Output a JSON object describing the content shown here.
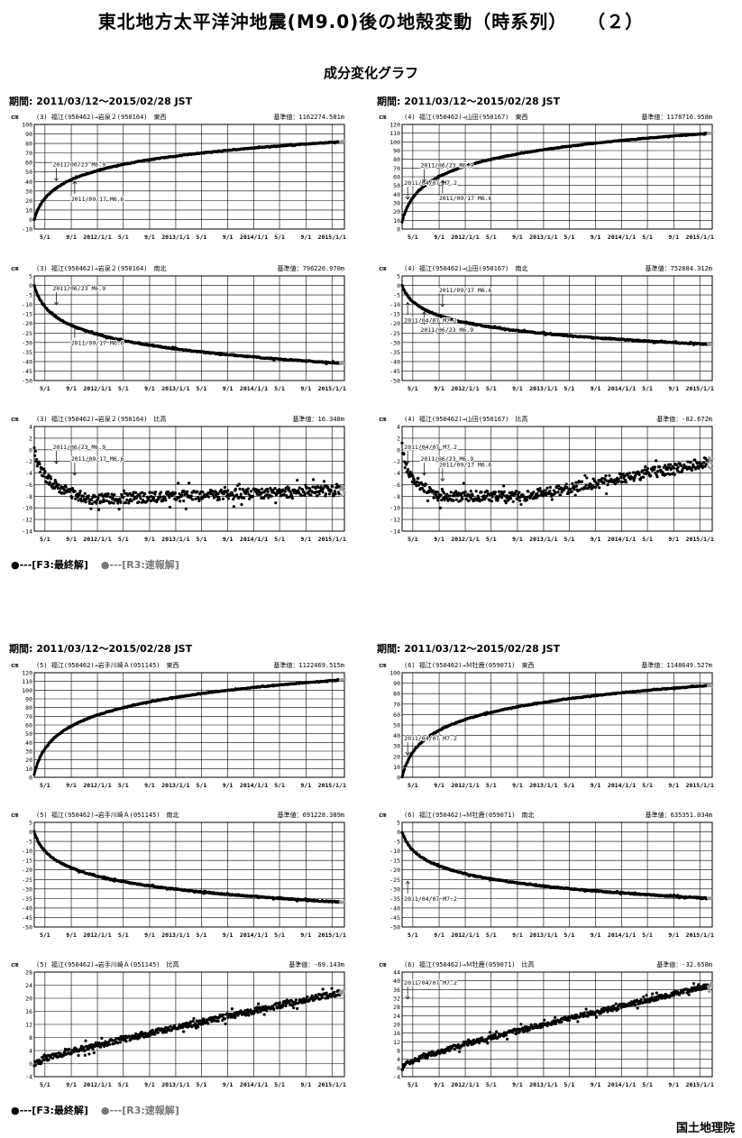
{
  "page": {
    "title": "東北地方太平洋沖地震(M9.0)後の地殻変動（時系列）　　（２）",
    "subtitle": "成分変化グラフ",
    "period": "期間: 2011/03/12〜2015/02/28 JST",
    "legend_final": "●---[F3:最終解]",
    "legend_rapid": "●---[R3:速報解]",
    "agency": "国土地理院",
    "colors": {
      "final": "#000000",
      "rapid": "#9a9a9a",
      "grid": "#000000"
    }
  },
  "x_tick_labels": [
    "5/1",
    "9/1",
    "2012/1/1",
    "5/1",
    "9/1",
    "2013/1/1",
    "5/1",
    "9/1",
    "2014/1/1",
    "5/1",
    "9/1",
    "2015/1/1"
  ],
  "chart_data": [
    {
      "type": "scatter",
      "unit": "cm",
      "header": "(3) 福江(950462)→岩泉２(950164)　東西",
      "ref": "基準値：1162274.581m",
      "ylim": [
        -10,
        100
      ],
      "ystep": 10,
      "shape": "log",
      "y0": 0,
      "y1": 82,
      "noise": 0.4,
      "annotations": [
        {
          "text": "2011/06/23 M6.9",
          "x_date": "2011-06-23",
          "arrow": "down",
          "value": 37
        },
        {
          "text": "2011/09/17 M6.6",
          "x_date": "2011-09-17",
          "arrow": "up",
          "value": 44
        }
      ]
    },
    {
      "type": "scatter",
      "unit": "cm",
      "header": "(4) 福江(950462)→山田(950167)　東西",
      "ref": "基準値：1178716.958m",
      "ylim": [
        0,
        120
      ],
      "ystep": 10,
      "shape": "log",
      "y0": 8,
      "y1": 110,
      "noise": 0.4,
      "annotations": [
        {
          "text": "2011/04/07 M7.2",
          "x_date": "2011-04-07",
          "arrow": "down",
          "value": 30
        },
        {
          "text": "2011/06/23 M6.9",
          "x_date": "2011-06-23",
          "arrow": "down",
          "value": 50
        },
        {
          "text": "2011/09/17 M6.6",
          "x_date": "2011-09-17",
          "arrow": "up",
          "value": 60
        }
      ]
    },
    {
      "type": "scatter",
      "unit": "cm",
      "header": "(3) 福江(950462)→岩泉２(950164)　南北",
      "ref": "基準値：796220.970m",
      "ylim": [
        -50,
        5
      ],
      "ystep": 5,
      "shape": "log",
      "y0": 0,
      "y1": -41,
      "noise": 0.3,
      "annotations": [
        {
          "text": "2011/06/23 M6.9",
          "x_date": "2011-06-23",
          "arrow": "down",
          "value": -12
        },
        {
          "text": "2011/09/17 M6.6",
          "x_date": "2011-09-17",
          "arrow": "up",
          "value": -19
        }
      ]
    },
    {
      "type": "scatter",
      "unit": "cm",
      "header": "(4) 福江(950462)→山田(950167)　南北",
      "ref": "基準値：752884.312m",
      "ylim": [
        -50,
        5
      ],
      "ystep": 5,
      "shape": "log",
      "y0": 0,
      "y1": -31,
      "noise": 0.3,
      "annotations": [
        {
          "text": "2011/09/17 M6.6",
          "x_date": "2011-09-17",
          "arrow": "down",
          "value": -13
        },
        {
          "text": "2011/06/23 M6.9",
          "x_date": "2011-06-23",
          "arrow": "up",
          "value": -12
        },
        {
          "text": "2011/04/07 M7.2",
          "x_date": "2011-04-07",
          "arrow": "up",
          "value": -7
        }
      ]
    },
    {
      "type": "scatter",
      "unit": "cm",
      "header": "(3) 福江(950462)→岩泉２(950164)　比高",
      "ref": "基準値：16.348m",
      "ylim": [
        -14,
        4
      ],
      "ystep": 2,
      "shape": "vert1",
      "y0": 0,
      "y1": -7,
      "noise": 0.9,
      "annotations": [
        {
          "text": "2011/06/23 M6.9",
          "x_date": "2011-06-23",
          "arrow": "down",
          "value": -3
        },
        {
          "text": "2011/09/17 M6.6",
          "x_date": "2011-09-17",
          "arrow": "down",
          "value": -5
        }
      ]
    },
    {
      "type": "scatter",
      "unit": "cm",
      "header": "(4) 福江(950462)→山田(950167)　比高",
      "ref": "基準値：-82.672m",
      "ylim": [
        -14,
        4
      ],
      "ystep": 2,
      "shape": "vert2",
      "y0": 0,
      "y1": -2,
      "noise": 0.9,
      "annotations": [
        {
          "text": "2011/04/07 M7.2",
          "x_date": "2011-04-07",
          "arrow": "down",
          "value": -3
        },
        {
          "text": "2011/06/23 M6.9",
          "x_date": "2011-06-23",
          "arrow": "down",
          "value": -5
        },
        {
          "text": "2011/09/17 M6.6",
          "x_date": "2011-09-17",
          "arrow": "down",
          "value": -6
        }
      ]
    },
    {
      "type": "scatter",
      "unit": "cm",
      "header": "(5) 福江(950462)→岩手川崎Ａ(051145)　東西",
      "ref": "基準値：1122469.515m",
      "ylim": [
        0,
        120
      ],
      "ystep": 10,
      "shape": "log",
      "y0": 3,
      "y1": 112,
      "noise": 0.4,
      "annotations": []
    },
    {
      "type": "scatter",
      "unit": "cm",
      "header": "(6) 福江(950462)→Ｍ牡鹿(059071)　東西",
      "ref": "基準値：1148649.527m",
      "ylim": [
        0,
        100
      ],
      "ystep": 10,
      "shape": "log",
      "y0": 0,
      "y1": 88,
      "noise": 0.4,
      "annotations": [
        {
          "text": "2011/04/07 M7.2",
          "x_date": "2011-04-07",
          "arrow": "down",
          "value": 18
        }
      ]
    },
    {
      "type": "scatter",
      "unit": "cm",
      "header": "(5) 福江(950462)→岩手川崎Ａ(051145)　南北",
      "ref": "基準値：691228.389m",
      "ylim": [
        -50,
        5
      ],
      "ystep": 5,
      "shape": "log",
      "y0": 0,
      "y1": -37,
      "noise": 0.3,
      "annotations": []
    },
    {
      "type": "scatter",
      "unit": "cm",
      "header": "(6) 福江(950462)→Ｍ牡鹿(059071)　南北",
      "ref": "基準値：635351.034m",
      "ylim": [
        -50,
        5
      ],
      "ystep": 5,
      "shape": "log",
      "y0": 0,
      "y1": -35,
      "noise": 0.3,
      "annotations": [
        {
          "text": "2011/04/07 M7.2",
          "x_date": "2011-04-07",
          "arrow": "up",
          "value": -24
        }
      ]
    },
    {
      "type": "scatter",
      "unit": "cm",
      "header": "(5) 福江(950462)→岩手川崎Ａ(051145)　比高",
      "ref": "基準値：-69.143m",
      "ylim": [
        -4,
        28
      ],
      "ystep": 4,
      "shape": "linear",
      "y0": 0,
      "y1": 22,
      "noise": 0.9,
      "annotations": []
    },
    {
      "type": "scatter",
      "unit": "cm",
      "header": "(6) 福江(950462)→Ｍ牡鹿(059071)　比高",
      "ref": "基準値：-32.658m",
      "ylim": [
        -4,
        44
      ],
      "ystep": 4,
      "shape": "linear2",
      "y0": 0,
      "y1": 38,
      "noise": 1.1,
      "annotations": [
        {
          "text": "2011/04/07 M7.2",
          "x_date": "2011-04-07",
          "arrow": "down",
          "value": 30
        }
      ]
    }
  ]
}
